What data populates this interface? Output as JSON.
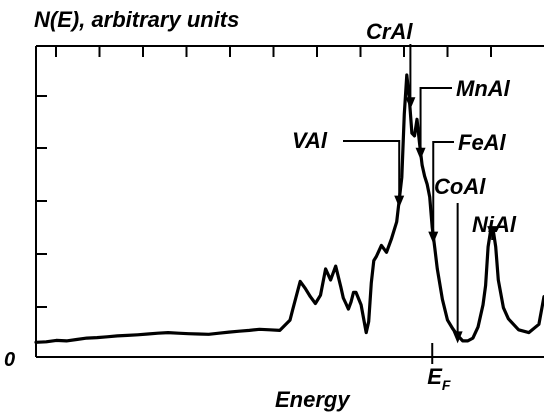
{
  "chart_data": {
    "type": "line",
    "title": "",
    "ylabel": "N(E), arbitrary units",
    "xlabel": "Energy",
    "y_origin_label": "0",
    "fermi_label": {
      "base": "E",
      "sub": "F"
    },
    "fermi_x": 0.78,
    "xlim": [
      0,
      1
    ],
    "ylim": [
      0,
      1
    ],
    "grid": false,
    "legend": "none",
    "line_color": "#000000",
    "series": [
      {
        "x": [
          0.0,
          0.02,
          0.04,
          0.06,
          0.08,
          0.1,
          0.12,
          0.14,
          0.16,
          0.18,
          0.2,
          0.22,
          0.24,
          0.26,
          0.28,
          0.3,
          0.32,
          0.34,
          0.36,
          0.38,
          0.4,
          0.42,
          0.44,
          0.46,
          0.48,
          0.5,
          0.505,
          0.52,
          0.53,
          0.54,
          0.55,
          0.56,
          0.57,
          0.58,
          0.59,
          0.6,
          0.605,
          0.61,
          0.615,
          0.62,
          0.625,
          0.63,
          0.64,
          0.65,
          0.655,
          0.66,
          0.665,
          0.67,
          0.68,
          0.69,
          0.7,
          0.71,
          0.72,
          0.725,
          0.73,
          0.735,
          0.74,
          0.745,
          0.75,
          0.755,
          0.76,
          0.765,
          0.77,
          0.775,
          0.78,
          0.785,
          0.79,
          0.8,
          0.81,
          0.82,
          0.83,
          0.84,
          0.85,
          0.86,
          0.87,
          0.88,
          0.885,
          0.89,
          0.895,
          0.9,
          0.905,
          0.91,
          0.92,
          0.93,
          0.95,
          0.97,
          0.99,
          1.0
        ],
        "y": [
          0.035,
          0.037,
          0.042,
          0.04,
          0.045,
          0.05,
          0.052,
          0.055,
          0.058,
          0.06,
          0.062,
          0.065,
          0.068,
          0.07,
          0.068,
          0.066,
          0.065,
          0.064,
          0.068,
          0.072,
          0.075,
          0.078,
          0.082,
          0.08,
          0.078,
          0.115,
          0.15,
          0.255,
          0.23,
          0.2,
          0.175,
          0.205,
          0.3,
          0.26,
          0.31,
          0.235,
          0.195,
          0.175,
          0.155,
          0.18,
          0.215,
          0.215,
          0.17,
          0.07,
          0.11,
          0.25,
          0.33,
          0.345,
          0.385,
          0.36,
          0.41,
          0.47,
          0.63,
          0.86,
          1.0,
          0.91,
          0.79,
          0.78,
          0.84,
          0.755,
          0.675,
          0.635,
          0.605,
          0.56,
          0.45,
          0.375,
          0.3,
          0.19,
          0.115,
          0.085,
          0.06,
          0.04,
          0.04,
          0.05,
          0.09,
          0.17,
          0.24,
          0.38,
          0.44,
          0.44,
          0.38,
          0.26,
          0.16,
          0.12,
          0.08,
          0.07,
          0.1,
          0.2
        ]
      }
    ],
    "annotations": [
      {
        "text": "CrAl",
        "x": 0.737
      },
      {
        "text": "MnAl",
        "x": 0.757
      },
      {
        "text": "VAl",
        "x": 0.715
      },
      {
        "text": "FeAl",
        "x": 0.782
      },
      {
        "text": "CoAl",
        "x": 0.83
      },
      {
        "text": "NiAl",
        "x": 0.898
      }
    ]
  }
}
